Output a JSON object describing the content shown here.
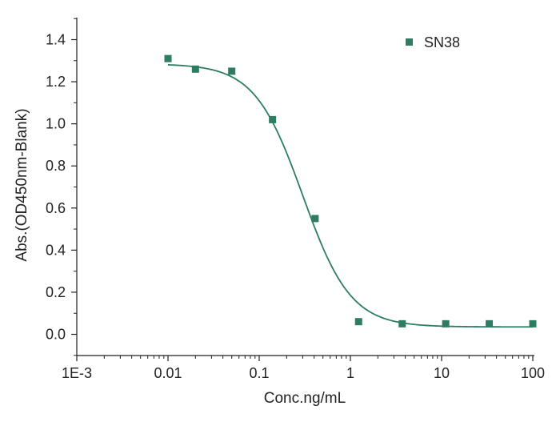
{
  "chart_data": {
    "type": "scatter",
    "title": "",
    "xlabel": "Conc.ng/mL",
    "ylabel": "Abs.(OD450nm-Blank)",
    "x_scale": "log",
    "xlim": [
      0.001,
      100
    ],
    "ylim": [
      -0.1,
      1.5
    ],
    "x_ticks": [
      0.001,
      0.01,
      0.1,
      1,
      10,
      100
    ],
    "x_tick_labels": [
      "1E-3",
      "0.01",
      "0.1",
      "1",
      "10",
      "100"
    ],
    "y_ticks": [
      0.0,
      0.2,
      0.4,
      0.6,
      0.8,
      1.0,
      1.2,
      1.4
    ],
    "y_tick_labels": [
      "0.0",
      "0.2",
      "0.4",
      "0.6",
      "0.8",
      "1.0",
      "1.2",
      "1.4"
    ],
    "grid": false,
    "legend": {
      "position": "top-right",
      "entries": [
        "SN38"
      ]
    },
    "series": [
      {
        "name": "SN38",
        "color": "#2e7d62",
        "marker": "square",
        "x": [
          0.01,
          0.02,
          0.05,
          0.14,
          0.41,
          1.23,
          3.7,
          11.1,
          33.3,
          100
        ],
        "y": [
          1.31,
          1.26,
          1.25,
          1.02,
          0.55,
          0.06,
          0.05,
          0.05,
          0.05,
          0.05
        ]
      }
    ],
    "fit": {
      "series": "SN38",
      "model": "four-parameter-logistic",
      "color": "#2e7d62",
      "x_range": [
        0.01,
        100
      ],
      "top": 1.285,
      "bottom": 0.035,
      "ec50": 0.3,
      "hill": 1.65
    }
  }
}
